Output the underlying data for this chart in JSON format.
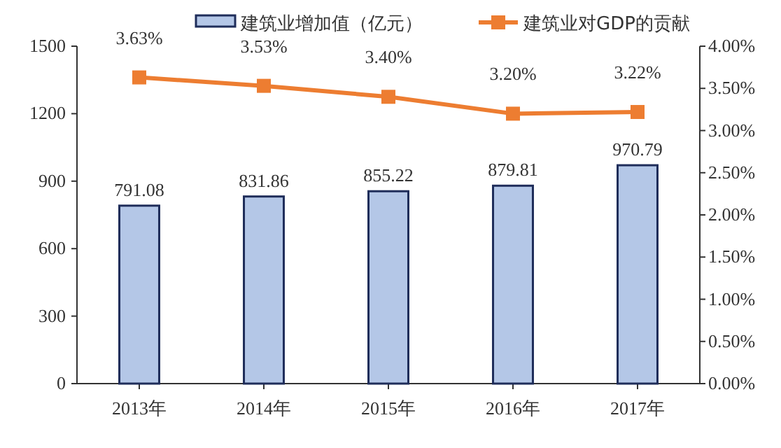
{
  "chart_data": {
    "type": "bar",
    "categories": [
      "2013年",
      "2014年",
      "2015年",
      "2016年",
      "2017年"
    ],
    "series": [
      {
        "name": "建筑业增加值（亿元）",
        "color": "#b4c7e7",
        "values": [
          791.08,
          831.86,
          855.22,
          879.81,
          970.79
        ],
        "value_labels": [
          "791.08",
          "831.86",
          "855.22",
          "879.81",
          "970.79"
        ]
      },
      {
        "name": "建筑业对GDP的贡献",
        "type": "line",
        "axis": "y2",
        "color": "#ed7d31",
        "marker": "square",
        "values": [
          3.63,
          3.53,
          3.4,
          3.2,
          3.22
        ],
        "value_labels": [
          "3.63%",
          "3.53%",
          "3.40%",
          "3.20%",
          "3.22%"
        ]
      }
    ],
    "ylim": [
      0,
      1500
    ],
    "yticks": [
      0,
      300,
      600,
      900,
      1200,
      1500
    ],
    "y2lim": [
      0,
      4
    ],
    "y2ticks": [
      {
        "value": 0,
        "label": "0.00%"
      },
      {
        "value": 0.5,
        "label": "0.50%"
      },
      {
        "value": 1,
        "label": "1.00%"
      },
      {
        "value": 1.5,
        "label": "1.50%"
      },
      {
        "value": 2,
        "label": "2.00%"
      },
      {
        "value": 2.5,
        "label": "2.50%"
      },
      {
        "value": 3,
        "label": "3.00%"
      },
      {
        "value": 3.5,
        "label": "3.50%"
      },
      {
        "value": 4,
        "label": "4.00%"
      }
    ],
    "legend": "top",
    "grid": false
  }
}
